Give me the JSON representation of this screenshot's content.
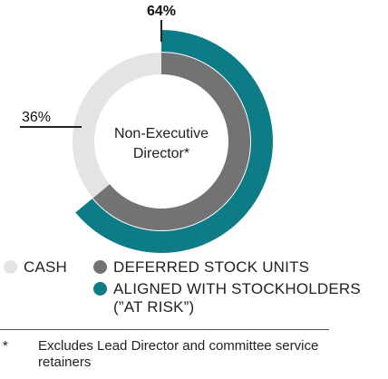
{
  "chart_data": {
    "type": "pie",
    "center_label": [
      "Non-Executive",
      "Director*"
    ],
    "outer_ring": {
      "slices": [
        {
          "name": "ALIGNED WITH STOCKHOLDERS (\"AT RISK\")",
          "value": 64,
          "label": "64%",
          "color": "#0e7c86"
        }
      ]
    },
    "inner_ring": {
      "slices": [
        {
          "name": "DEFERRED STOCK UNITS",
          "value": 64,
          "color": "#737373"
        },
        {
          "name": "CASH",
          "value": 36,
          "label": "36%",
          "color": "#e4e4e4"
        }
      ]
    }
  },
  "legend": {
    "cash": {
      "label": "CASH",
      "color": "#e4e4e4"
    },
    "dsu": {
      "label": "DEFERRED STOCK UNITS",
      "color": "#737373"
    },
    "aligned": {
      "line1": "ALIGNED WITH STOCKHOLDERS",
      "line2": "(”AT RISK”)",
      "color": "#0e7c86"
    }
  },
  "footnote": {
    "marker": "*",
    "text": "Excludes Lead Director and committee service retainers"
  }
}
